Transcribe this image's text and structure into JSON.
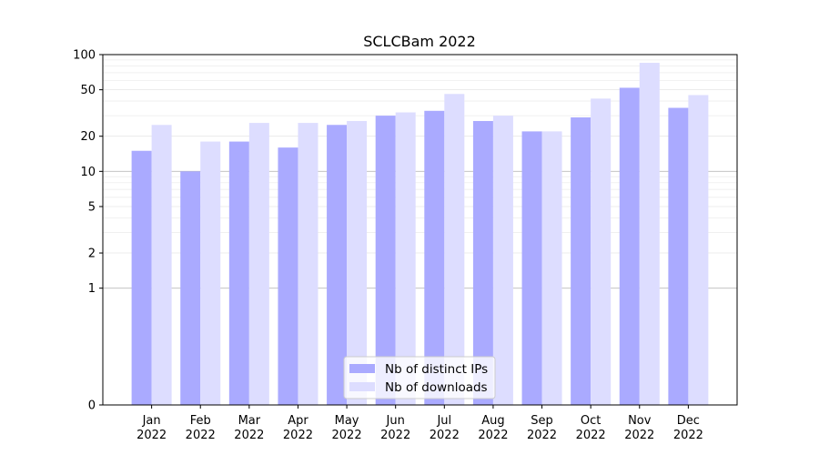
{
  "chart_data": {
    "type": "bar",
    "title": "SCLCBam 2022",
    "xlabel": "",
    "ylabel": "",
    "yscale": "symlog",
    "ylim": [
      0,
      100
    ],
    "yticks": [
      0,
      1,
      2,
      5,
      10,
      20,
      50,
      100
    ],
    "ytick_labels": [
      "0",
      "1",
      "2",
      "5",
      "10",
      "20",
      "50",
      "100"
    ],
    "categories": [
      [
        "Jan",
        "2022"
      ],
      [
        "Feb",
        "2022"
      ],
      [
        "Mar",
        "2022"
      ],
      [
        "Apr",
        "2022"
      ],
      [
        "May",
        "2022"
      ],
      [
        "Jun",
        "2022"
      ],
      [
        "Jul",
        "2022"
      ],
      [
        "Aug",
        "2022"
      ],
      [
        "Sep",
        "2022"
      ],
      [
        "Oct",
        "2022"
      ],
      [
        "Nov",
        "2022"
      ],
      [
        "Dec",
        "2022"
      ]
    ],
    "series": [
      {
        "name": "Nb of distinct IPs",
        "color": "#aaaaff",
        "values": [
          15,
          10,
          18,
          16,
          25,
          30,
          33,
          27,
          22,
          29,
          52,
          35
        ]
      },
      {
        "name": "Nb of downloads",
        "color": "#ddddff",
        "values": [
          25,
          18,
          26,
          26,
          27,
          32,
          46,
          30,
          22,
          42,
          85,
          45
        ]
      }
    ],
    "grid": true,
    "legend_position": "lower-center"
  }
}
